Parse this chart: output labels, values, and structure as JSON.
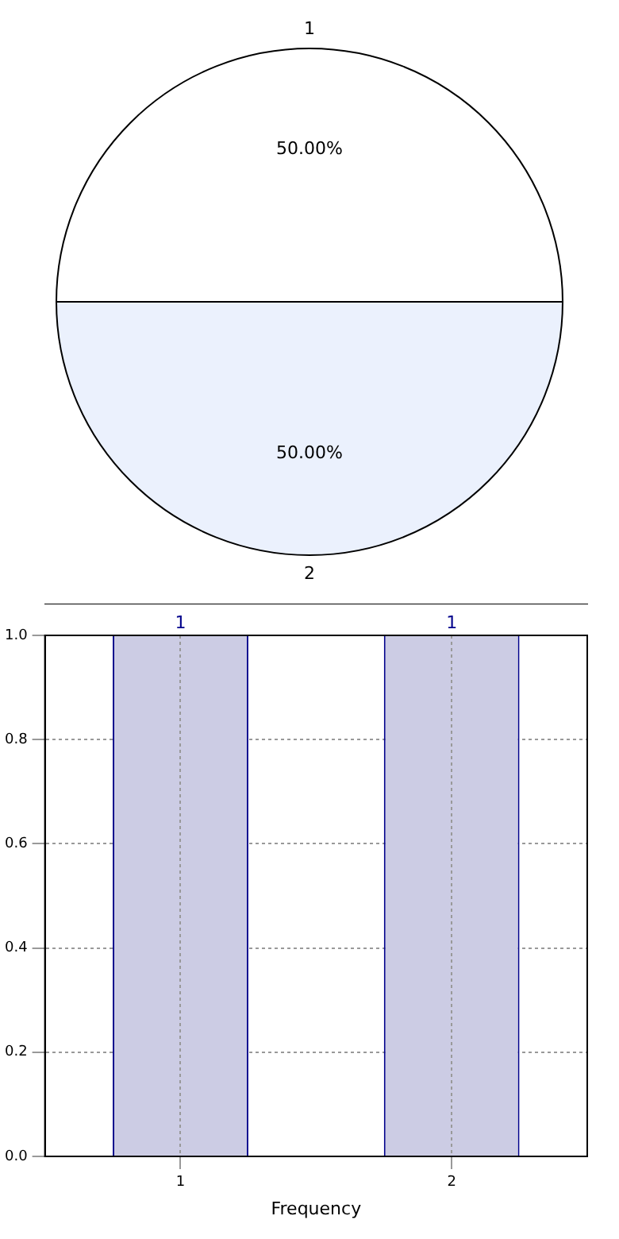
{
  "chart_data": [
    {
      "type": "pie",
      "categories": [
        "1",
        "2"
      ],
      "values": [
        50,
        50
      ],
      "colors": [
        "#ffffff",
        "#ebf1fd"
      ],
      "value_labels": [
        "50.00%",
        "50.00%"
      ]
    },
    {
      "type": "bar",
      "categories": [
        "1",
        "2"
      ],
      "values": [
        1,
        1
      ],
      "color": "#cccce4",
      "xlabel": "Frequency",
      "ylim": [
        0,
        1
      ],
      "yticks": [
        {
          "value": 0,
          "label": "0.0"
        },
        {
          "value": 0.2,
          "label": "0.2"
        },
        {
          "value": 0.4,
          "label": "0.4"
        },
        {
          "value": 0.6,
          "label": "0.6"
        },
        {
          "value": 0.8,
          "label": "0.8"
        },
        {
          "value": 1,
          "label": "1.0"
        }
      ],
      "grid": true,
      "data_labels": true
    }
  ]
}
